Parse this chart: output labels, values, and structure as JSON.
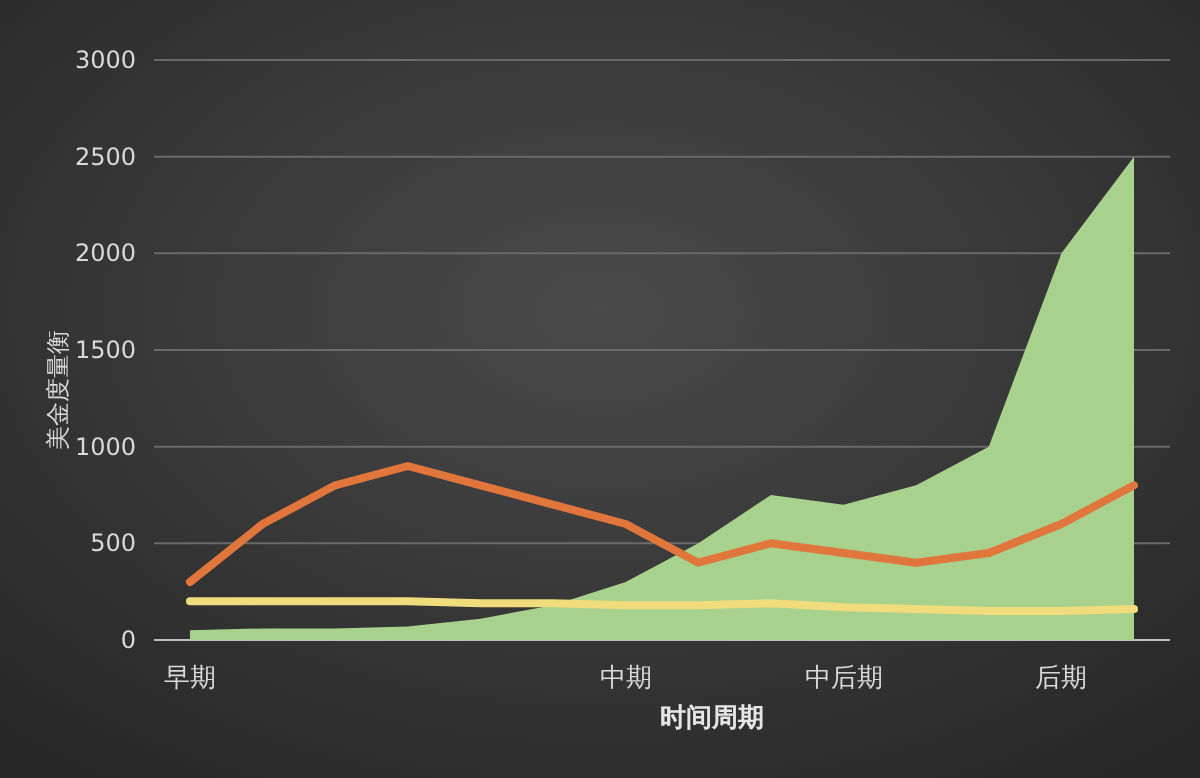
{
  "chart_data": {
    "type": "line",
    "xlabel": "时间周期",
    "ylabel": "美金度量衡",
    "categories": [
      "早期",
      null,
      null,
      null,
      null,
      null,
      "中期",
      null,
      null,
      "中后期",
      null,
      null,
      "后期",
      null
    ],
    "series": [
      {
        "type": "area",
        "color": "#a9d18e",
        "values": [
          50,
          60,
          60,
          70,
          110,
          180,
          300,
          500,
          750,
          700,
          800,
          1000,
          2000,
          2500
        ]
      },
      {
        "type": "line",
        "color": "#e0763c",
        "values": [
          300,
          600,
          800,
          900,
          800,
          700,
          600,
          400,
          500,
          450,
          400,
          450,
          600,
          800
        ]
      },
      {
        "type": "line",
        "color": "#f0dc7c",
        "values": [
          200,
          200,
          200,
          200,
          190,
          190,
          180,
          180,
          190,
          170,
          160,
          150,
          150,
          160
        ]
      }
    ],
    "ylim": [
      0,
      3000
    ],
    "yticks": [
      0,
      500,
      1000,
      1500,
      2000,
      2500,
      3000
    ],
    "grid": "y"
  }
}
